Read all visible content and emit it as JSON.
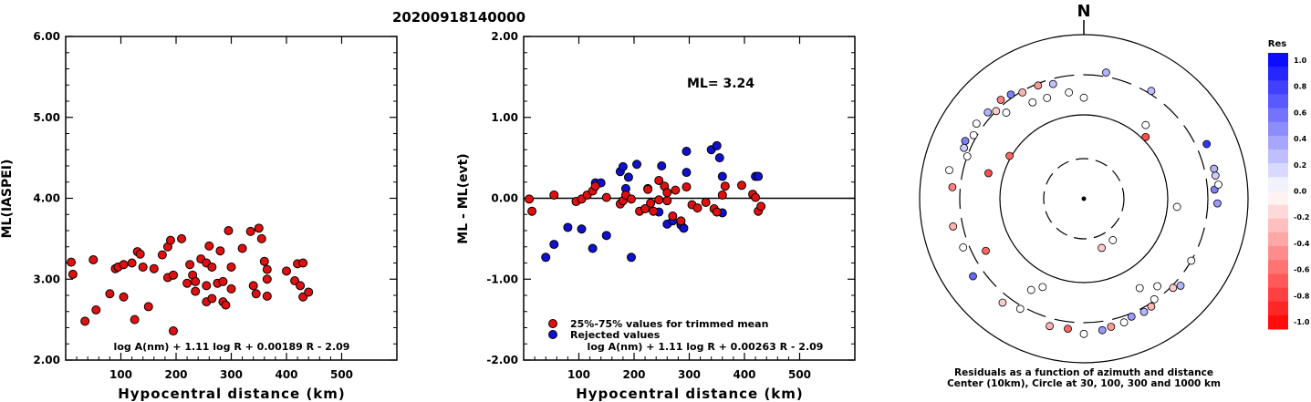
{
  "title": "20200918140000",
  "colors": {
    "red": "#e01010",
    "blue": "#1010d0"
  },
  "chart_data": [
    {
      "type": "scatter",
      "xlabel": "Hypocentral distance (km)",
      "ylabel": "ML(IASPEI)",
      "xlim": [
        0,
        600
      ],
      "ylim": [
        2.0,
        6.0
      ],
      "x_ticks": [
        100,
        200,
        300,
        400,
        500
      ],
      "x_tick_labels": [
        "100",
        "200",
        "300",
        "400",
        "500"
      ],
      "y_ticks": [
        2.0,
        3.0,
        4.0,
        5.0,
        6.0
      ],
      "y_tick_labels": [
        "2.00",
        "3.00",
        "4.00",
        "5.00",
        "6.00"
      ],
      "formula": "log A(nm) + 1.11 log R + 0.00189 R - 2.09",
      "points": [
        [
          10,
          3.21
        ],
        [
          13,
          3.06
        ],
        [
          35,
          2.48
        ],
        [
          50,
          3.24
        ],
        [
          55,
          2.62
        ],
        [
          80,
          2.82
        ],
        [
          90,
          3.13
        ],
        [
          95,
          3.15
        ],
        [
          105,
          3.18
        ],
        [
          105,
          2.78
        ],
        [
          120,
          3.2
        ],
        [
          125,
          2.5
        ],
        [
          130,
          3.34
        ],
        [
          135,
          3.31
        ],
        [
          140,
          3.15
        ],
        [
          150,
          2.66
        ],
        [
          160,
          3.13
        ],
        [
          175,
          3.3
        ],
        [
          185,
          3.4
        ],
        [
          190,
          3.48
        ],
        [
          185,
          3.02
        ],
        [
          195,
          3.05
        ],
        [
          195,
          2.36
        ],
        [
          210,
          3.5
        ],
        [
          220,
          2.95
        ],
        [
          225,
          3.18
        ],
        [
          230,
          3.05
        ],
        [
          235,
          2.97
        ],
        [
          235,
          2.85
        ],
        [
          245,
          3.25
        ],
        [
          255,
          3.2
        ],
        [
          255,
          2.92
        ],
        [
          255,
          2.72
        ],
        [
          260,
          3.41
        ],
        [
          265,
          3.15
        ],
        [
          265,
          2.76
        ],
        [
          275,
          2.95
        ],
        [
          280,
          3.35
        ],
        [
          285,
          2.97
        ],
        [
          285,
          2.72
        ],
        [
          290,
          2.68
        ],
        [
          295,
          3.6
        ],
        [
          300,
          3.15
        ],
        [
          300,
          2.88
        ],
        [
          320,
          3.38
        ],
        [
          335,
          3.59
        ],
        [
          340,
          2.92
        ],
        [
          345,
          2.82
        ],
        [
          350,
          3.63
        ],
        [
          355,
          3.5
        ],
        [
          360,
          3.22
        ],
        [
          365,
          3.12
        ],
        [
          365,
          3.0
        ],
        [
          365,
          2.79
        ],
        [
          400,
          3.1
        ],
        [
          415,
          2.98
        ],
        [
          420,
          3.19
        ],
        [
          425,
          2.92
        ],
        [
          430,
          3.2
        ],
        [
          430,
          2.78
        ],
        [
          440,
          2.84
        ]
      ]
    },
    {
      "type": "scatter",
      "xlabel": "Hypocentral distance (km)",
      "ylabel": "ML - ML(evt)",
      "xlim": [
        0,
        600
      ],
      "ylim": [
        -2.0,
        2.0
      ],
      "x_ticks": [
        100,
        200,
        300,
        400,
        500
      ],
      "x_tick_labels": [
        "100",
        "200",
        "300",
        "400",
        "500"
      ],
      "y_ticks": [
        -2.0,
        -1.0,
        0.0,
        1.0,
        2.0
      ],
      "y_tick_labels": [
        "-2.00",
        "-1.00",
        "0.00",
        "1.00",
        "2.00"
      ],
      "annotation": "ML= 3.24",
      "legend": [
        "25%-75% values for trimmed mean",
        "Rejected values"
      ],
      "formula": "log A(nm) + 1.11 log R + 0.00263 R - 2.09",
      "reference_line": 0.0,
      "accepted": [
        [
          10,
          -0.01
        ],
        [
          15,
          -0.16
        ],
        [
          55,
          0.04
        ],
        [
          95,
          -0.04
        ],
        [
          105,
          -0.01
        ],
        [
          115,
          0.04
        ],
        [
          125,
          0.09
        ],
        [
          130,
          0.15
        ],
        [
          150,
          0.01
        ],
        [
          175,
          -0.07
        ],
        [
          180,
          -0.03
        ],
        [
          185,
          0.04
        ],
        [
          195,
          -0.01
        ],
        [
          210,
          -0.16
        ],
        [
          220,
          -0.13
        ],
        [
          225,
          0.11
        ],
        [
          230,
          -0.06
        ],
        [
          235,
          -0.16
        ],
        [
          245,
          0.22
        ],
        [
          245,
          -0.02
        ],
        [
          255,
          0.15
        ],
        [
          260,
          -0.03
        ],
        [
          260,
          0.07
        ],
        [
          270,
          -0.22
        ],
        [
          275,
          0.1
        ],
        [
          285,
          -0.28
        ],
        [
          295,
          0.14
        ],
        [
          305,
          -0.08
        ],
        [
          315,
          -0.12
        ],
        [
          330,
          -0.05
        ],
        [
          345,
          -0.13
        ],
        [
          350,
          -0.17
        ],
        [
          360,
          0.04
        ],
        [
          365,
          0.15
        ],
        [
          395,
          0.16
        ],
        [
          415,
          0.05
        ],
        [
          420,
          0.01
        ],
        [
          425,
          -0.16
        ],
        [
          430,
          -0.1
        ]
      ],
      "rejected": [
        [
          40,
          -0.73
        ],
        [
          55,
          -0.57
        ],
        [
          80,
          -0.36
        ],
        [
          105,
          -0.38
        ],
        [
          125,
          -0.62
        ],
        [
          130,
          0.19
        ],
        [
          140,
          0.19
        ],
        [
          150,
          -0.46
        ],
        [
          175,
          0.33
        ],
        [
          180,
          0.39
        ],
        [
          185,
          0.12
        ],
        [
          190,
          0.26
        ],
        [
          195,
          -0.73
        ],
        [
          205,
          0.42
        ],
        [
          225,
          0.12
        ],
        [
          245,
          -0.17
        ],
        [
          250,
          0.4
        ],
        [
          260,
          -0.32
        ],
        [
          270,
          -0.28
        ],
        [
          285,
          -0.33
        ],
        [
          290,
          -0.37
        ],
        [
          295,
          0.32
        ],
        [
          295,
          0.58
        ],
        [
          340,
          0.6
        ],
        [
          350,
          0.65
        ],
        [
          355,
          0.5
        ],
        [
          360,
          0.27
        ],
        [
          360,
          -0.18
        ],
        [
          420,
          0.27
        ],
        [
          425,
          0.27
        ]
      ]
    },
    {
      "type": "polar-scatter",
      "north_label": "N",
      "caption_line1": "Residuals as a function of azimuth and distance",
      "caption_line2": "Center (10km), Circle at 30, 100, 300 and 1000 km",
      "rings_km": [
        30,
        100,
        300,
        1000
      ],
      "colorbar": {
        "title": "Res",
        "labels": [
          "1.0",
          "0.8",
          "0.6",
          "0.4",
          "0.2",
          "0.0",
          "-0.2",
          "-0.4",
          "-0.6",
          "-0.8",
          "-1.0"
        ]
      },
      "stations": [
        {
          "az": 160,
          "dist": 42,
          "res": -0.2
        },
        {
          "az": 145,
          "dist": 40,
          "res": 0.0
        },
        {
          "az": 285,
          "dist": 150,
          "res": -0.7
        },
        {
          "az": 300,
          "dist": 105,
          "res": -0.6
        },
        {
          "az": 95,
          "dist": 130,
          "res": 0.0
        },
        {
          "az": 40,
          "dist": 140,
          "res": 0.0
        },
        {
          "az": 0,
          "dist": 160,
          "res": 0.0
        },
        {
          "az": 10,
          "dist": 340,
          "res": 0.3
        },
        {
          "az": 32,
          "dist": 330,
          "res": 0.25
        },
        {
          "az": 345,
          "dist": 260,
          "res": 0.25
        },
        {
          "az": 352,
          "dist": 190,
          "res": 0.0
        },
        {
          "az": 318,
          "dist": 240,
          "res": 0.0
        },
        {
          "az": 315,
          "dist": 300,
          "res": -0.2
        },
        {
          "az": 320,
          "dist": 350,
          "res": -0.5
        },
        {
          "az": 312,
          "dist": 350,
          "res": 0.3
        },
        {
          "az": 305,
          "dist": 370,
          "res": 0.0
        },
        {
          "az": 300,
          "dist": 330,
          "res": 0.0
        },
        {
          "az": 296,
          "dist": 380,
          "res": 0.5
        },
        {
          "az": 293,
          "dist": 360,
          "res": 0.2
        },
        {
          "az": 290,
          "dist": 300,
          "res": 0.0
        },
        {
          "az": 282,
          "dist": 450,
          "res": 0.0
        },
        {
          "az": 275,
          "dist": 380,
          "res": -0.5
        },
        {
          "az": 258,
          "dist": 400,
          "res": -0.3
        },
        {
          "az": 248,
          "dist": 360,
          "res": 0.0
        },
        {
          "az": 242,
          "dist": 210,
          "res": -0.6
        },
        {
          "az": 235,
          "dist": 420,
          "res": 0.6
        },
        {
          "az": 218,
          "dist": 380,
          "res": -0.2
        },
        {
          "az": 210,
          "dist": 180,
          "res": 0.0
        },
        {
          "az": 205,
          "dist": 145,
          "res": 0.0
        },
        {
          "az": 210,
          "dist": 330,
          "res": 0.0
        },
        {
          "az": 195,
          "dist": 380,
          "res": -0.3
        },
        {
          "az": 187,
          "dist": 370,
          "res": -0.6
        },
        {
          "az": 180,
          "dist": 420,
          "res": 0.0
        },
        {
          "az": 172,
          "dist": 390,
          "res": 0.4
        },
        {
          "az": 168,
          "dist": 370,
          "res": -0.4
        },
        {
          "az": 162,
          "dist": 360,
          "res": 0.0
        },
        {
          "az": 158,
          "dist": 330,
          "res": 0.4
        },
        {
          "az": 152,
          "dist": 340,
          "res": 0.3
        },
        {
          "az": 148,
          "dist": 330,
          "res": -0.3
        },
        {
          "az": 145,
          "dist": 290,
          "res": 0.0
        },
        {
          "az": 140,
          "dist": 230,
          "res": 0.0
        },
        {
          "az": 135,
          "dist": 320,
          "res": -0.2
        },
        {
          "az": 132,
          "dist": 360,
          "res": 0.3
        },
        {
          "az": 148,
          "dist": 180,
          "res": 0.0
        },
        {
          "az": 120,
          "dist": 300,
          "res": 0.0
        },
        {
          "az": 92,
          "dist": 400,
          "res": 0.4
        },
        {
          "az": 86,
          "dist": 370,
          "res": 0.5
        },
        {
          "az": 84,
          "dist": 420,
          "res": 0.0
        },
        {
          "az": 80,
          "dist": 400,
          "res": 0.2
        },
        {
          "az": 77,
          "dist": 400,
          "res": 0.3
        },
        {
          "az": 66,
          "dist": 410,
          "res": 0.8
        },
        {
          "az": 45,
          "dist": 110,
          "res": -0.7
        },
        {
          "az": 330,
          "dist": 290,
          "res": -0.3
        },
        {
          "az": 325,
          "dist": 330,
          "res": 0.5
        },
        {
          "az": 332,
          "dist": 200,
          "res": 0.0
        },
        {
          "az": 340,
          "dist": 190,
          "res": 0.0
        },
        {
          "az": 338,
          "dist": 285,
          "res": -0.4
        }
      ]
    }
  ]
}
